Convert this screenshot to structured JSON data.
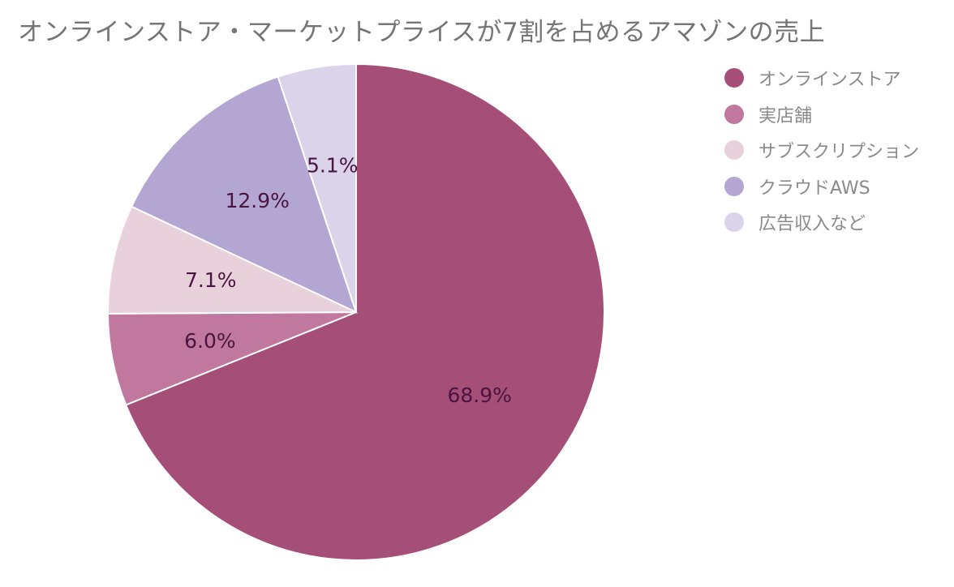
{
  "chart_data": {
    "type": "pie",
    "title": "オンラインストア・マーケットプライスが7割を占めるアマゾンの売上",
    "slices": [
      {
        "name": "オンラインストア",
        "value": 68.9,
        "label": "68.9%",
        "color": "#a54f78"
      },
      {
        "name": "実店舗",
        "value": 6.0,
        "label": "6.0%",
        "color": "#c0789f"
      },
      {
        "name": "サブスクリプション",
        "value": 7.1,
        "label": "7.1%",
        "color": "#e8d1da"
      },
      {
        "name": "クラウドAWS",
        "value": 12.9,
        "label": "12.9%",
        "color": "#b3a6d3"
      },
      {
        "name": "広告収入など",
        "value": 5.1,
        "label": "5.1%",
        "color": "#dbd3ea"
      }
    ],
    "start_angle": "12 o'clock",
    "direction": "clockwise",
    "legend_position": "right"
  }
}
